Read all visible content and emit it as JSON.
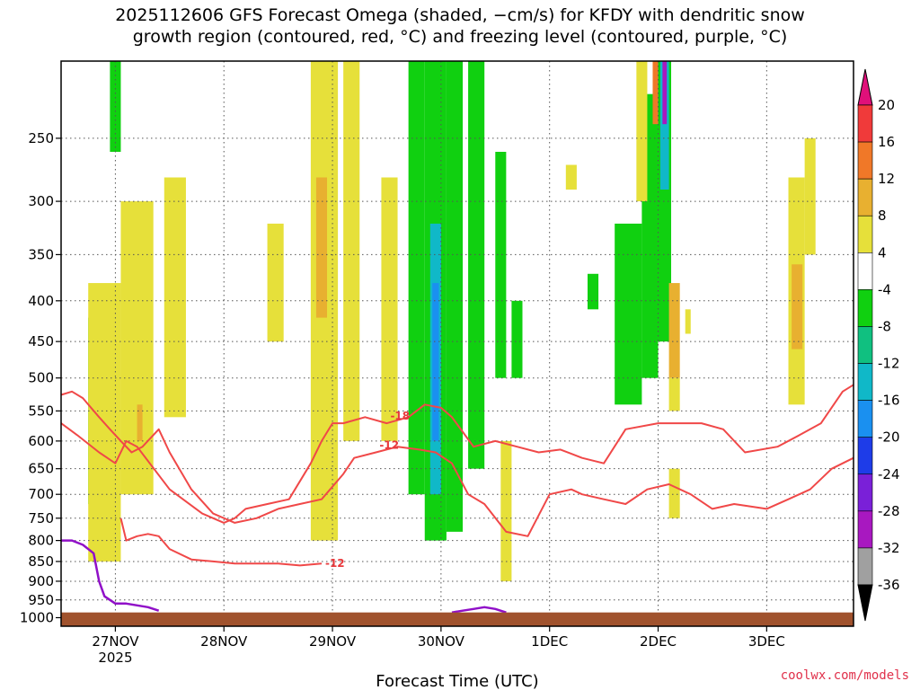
{
  "title": {
    "line1": "2025112606 GFS Forecast Omega (shaded, −cm/s) for KFDY with dendritic snow",
    "line2": "growth region (contoured, red, °C) and freezing level (contoured, purple, °C)"
  },
  "credit": "coolwx.com/models",
  "chart_data": {
    "type": "heatmap",
    "xlabel": "Forecast Time (UTC)",
    "x_ticks": [
      {
        "t": 0.5,
        "label": "27NOV",
        "sub": "2025"
      },
      {
        "t": 1.5,
        "label": "28NOV",
        "sub": ""
      },
      {
        "t": 2.5,
        "label": "29NOV",
        "sub": ""
      },
      {
        "t": 3.5,
        "label": "30NOV",
        "sub": ""
      },
      {
        "t": 4.5,
        "label": "1DEC",
        "sub": ""
      },
      {
        "t": 5.5,
        "label": "2DEC",
        "sub": ""
      },
      {
        "t": 6.5,
        "label": "3DEC",
        "sub": ""
      }
    ],
    "xlim": [
      0,
      7.3
    ],
    "y_ticks": [
      250,
      300,
      350,
      400,
      450,
      500,
      550,
      600,
      650,
      700,
      750,
      800,
      850,
      900,
      950,
      1000
    ],
    "ylim": [
      200,
      1025
    ],
    "y_scale": "log",
    "grid": true,
    "colorbar": {
      "labels": [
        "20",
        "16",
        "12",
        "8",
        "4",
        "-4",
        "-8",
        "-12",
        "-16",
        "-20",
        "-24",
        "-28",
        "-32",
        "-36"
      ],
      "bands": [
        {
          "color": "#f03a3a",
          "lo": 16,
          "hi": 20
        },
        {
          "color": "#f07828",
          "lo": 12,
          "hi": 16
        },
        {
          "color": "#e8b030",
          "lo": 8,
          "hi": 12
        },
        {
          "color": "#e6e03a",
          "lo": 4,
          "hi": 8
        },
        {
          "color": "#ffffff",
          "lo": -4,
          "hi": 4
        },
        {
          "color": "#10d010",
          "lo": -8,
          "hi": -4
        },
        {
          "color": "#10c080",
          "lo": -12,
          "hi": -8
        },
        {
          "color": "#10b8c8",
          "lo": -16,
          "hi": -12
        },
        {
          "color": "#1a90f0",
          "lo": -20,
          "hi": -16
        },
        {
          "color": "#1e3ce8",
          "lo": -24,
          "hi": -20
        },
        {
          "color": "#7a20d8",
          "lo": -28,
          "hi": -24
        },
        {
          "color": "#a818c0",
          "lo": -32,
          "hi": -28
        },
        {
          "color": "#a0a0a0",
          "lo": -36,
          "hi": -32
        }
      ],
      "top_arrow_color": "#e0107a",
      "bottom_arrow_color": "#000000"
    },
    "omega_cells": [
      {
        "t0": 0.45,
        "t1": 0.55,
        "p0": 200,
        "p1": 260,
        "color": "#10d010"
      },
      {
        "t0": 0.25,
        "t1": 0.35,
        "p0": 420,
        "p1": 720,
        "color": "#10d010"
      },
      {
        "t0": 0.25,
        "t1": 0.55,
        "p0": 380,
        "p1": 850,
        "color": "#e6e03a"
      },
      {
        "t0": 0.55,
        "t1": 0.85,
        "p0": 300,
        "p1": 700,
        "color": "#e6e03a"
      },
      {
        "t0": 0.95,
        "t1": 1.15,
        "p0": 280,
        "p1": 560,
        "color": "#e6e03a"
      },
      {
        "t0": 0.7,
        "t1": 0.75,
        "p0": 540,
        "p1": 600,
        "color": "#e8b030"
      },
      {
        "t0": 1.9,
        "t1": 2.05,
        "p0": 320,
        "p1": 450,
        "color": "#e6e03a"
      },
      {
        "t0": 2.3,
        "t1": 2.55,
        "p0": 200,
        "p1": 800,
        "color": "#e6e03a"
      },
      {
        "t0": 2.6,
        "t1": 2.75,
        "p0": 200,
        "p1": 600,
        "color": "#e6e03a"
      },
      {
        "t0": 2.35,
        "t1": 2.45,
        "p0": 280,
        "p1": 420,
        "color": "#e8b030"
      },
      {
        "t0": 2.95,
        "t1": 3.1,
        "p0": 280,
        "p1": 600,
        "color": "#e6e03a"
      },
      {
        "t0": 3.2,
        "t1": 3.35,
        "p0": 200,
        "p1": 700,
        "color": "#10d010"
      },
      {
        "t0": 3.35,
        "t1": 3.55,
        "p0": 200,
        "p1": 800,
        "color": "#10d010"
      },
      {
        "t0": 3.4,
        "t1": 3.5,
        "p0": 320,
        "p1": 700,
        "color": "#10b8c8"
      },
      {
        "t0": 3.42,
        "t1": 3.48,
        "p0": 380,
        "p1": 600,
        "color": "#1a90f0"
      },
      {
        "t0": 3.55,
        "t1": 3.7,
        "p0": 200,
        "p1": 780,
        "color": "#10d010"
      },
      {
        "t0": 3.75,
        "t1": 3.9,
        "p0": 200,
        "p1": 650,
        "color": "#10d010"
      },
      {
        "t0": 4.0,
        "t1": 4.1,
        "p0": 260,
        "p1": 500,
        "color": "#10d010"
      },
      {
        "t0": 4.05,
        "t1": 4.15,
        "p0": 600,
        "p1": 900,
        "color": "#e6e03a"
      },
      {
        "t0": 4.15,
        "t1": 4.25,
        "p0": 400,
        "p1": 500,
        "color": "#10d010"
      },
      {
        "t0": 4.65,
        "t1": 4.75,
        "p0": 270,
        "p1": 290,
        "color": "#e6e03a"
      },
      {
        "t0": 4.85,
        "t1": 4.95,
        "p0": 370,
        "p1": 410,
        "color": "#10d010"
      },
      {
        "t0": 5.1,
        "t1": 5.35,
        "p0": 320,
        "p1": 540,
        "color": "#10d010"
      },
      {
        "t0": 5.35,
        "t1": 5.5,
        "p0": 220,
        "p1": 500,
        "color": "#10d010"
      },
      {
        "t0": 5.3,
        "t1": 5.4,
        "p0": 200,
        "p1": 300,
        "color": "#e6e03a"
      },
      {
        "t0": 5.5,
        "t1": 5.62,
        "p0": 200,
        "p1": 450,
        "color": "#10d010"
      },
      {
        "t0": 5.52,
        "t1": 5.6,
        "p0": 200,
        "p1": 290,
        "color": "#10b8c8"
      },
      {
        "t0": 5.54,
        "t1": 5.58,
        "p0": 200,
        "p1": 240,
        "color": "#a818c0"
      },
      {
        "t0": 5.45,
        "t1": 5.5,
        "p0": 200,
        "p1": 240,
        "color": "#f07828"
      },
      {
        "t0": 5.6,
        "t1": 5.7,
        "p0": 380,
        "p1": 500,
        "color": "#e8b030"
      },
      {
        "t0": 5.6,
        "t1": 5.7,
        "p0": 500,
        "p1": 550,
        "color": "#e6e03a"
      },
      {
        "t0": 5.75,
        "t1": 5.8,
        "p0": 410,
        "p1": 440,
        "color": "#e6e03a"
      },
      {
        "t0": 5.6,
        "t1": 5.7,
        "p0": 650,
        "p1": 750,
        "color": "#e6e03a"
      },
      {
        "t0": 6.7,
        "t1": 6.85,
        "p0": 280,
        "p1": 540,
        "color": "#e6e03a"
      },
      {
        "t0": 6.85,
        "t1": 6.95,
        "p0": 250,
        "p1": 350,
        "color": "#e6e03a"
      },
      {
        "t0": 6.73,
        "t1": 6.83,
        "p0": 360,
        "p1": 460,
        "color": "#e8b030"
      }
    ],
    "dgz_contours": [
      {
        "label": "-18",
        "t": [
          0.0,
          0.15,
          0.35,
          0.5,
          0.6,
          0.7,
          1.0,
          1.3,
          1.5,
          1.6,
          1.7,
          1.9,
          2.1,
          2.3,
          2.4,
          2.5,
          2.6,
          2.8,
          3.0,
          3.2,
          3.35,
          3.5,
          3.6,
          3.8,
          4.0,
          4.2,
          4.4,
          4.6,
          4.8,
          5.0,
          5.2,
          5.5,
          5.7,
          5.9,
          6.1,
          6.3,
          6.6,
          6.8,
          7.0,
          7.2,
          7.3
        ],
        "p": [
          570,
          590,
          620,
          640,
          600,
          610,
          690,
          740,
          760,
          750,
          730,
          720,
          710,
          640,
          600,
          570,
          570,
          560,
          570,
          560,
          540,
          545,
          560,
          610,
          600,
          610,
          620,
          615,
          630,
          640,
          580,
          570,
          570,
          570,
          580,
          620,
          610,
          590,
          570,
          520,
          510
        ]
      },
      {
        "label": "-12",
        "t": [
          0.0,
          0.1,
          0.2,
          0.35,
          0.45,
          0.55,
          0.65,
          0.75,
          0.9,
          1.0,
          1.2,
          1.4,
          1.6,
          1.8,
          2.0,
          2.2,
          2.4,
          2.6,
          2.7,
          2.9,
          3.1,
          3.3,
          3.45,
          3.6,
          3.75,
          3.9,
          4.1,
          4.3,
          4.5,
          4.7,
          4.8,
          5.0,
          5.2,
          5.4,
          5.6,
          5.8,
          6.0,
          6.2,
          6.5,
          6.7,
          6.9,
          7.1,
          7.3
        ],
        "p": [
          525,
          520,
          530,
          560,
          580,
          600,
          620,
          610,
          580,
          620,
          690,
          740,
          760,
          750,
          730,
          720,
          710,
          660,
          630,
          620,
          610,
          615,
          620,
          640,
          700,
          720,
          780,
          790,
          700,
          690,
          700,
          710,
          720,
          690,
          680,
          700,
          730,
          720,
          730,
          710,
          690,
          650,
          630
        ]
      }
    ],
    "dgz_lower": [
      {
        "label": "-12",
        "t": [
          0.55,
          0.6,
          0.7,
          0.8,
          0.9,
          1.0,
          1.2,
          1.4,
          1.6,
          1.8,
          2.0,
          2.2,
          2.4
        ],
        "p": [
          750,
          800,
          790,
          785,
          790,
          820,
          845,
          850,
          855,
          855,
          855,
          860,
          855
        ]
      }
    ],
    "freezing_level": [
      {
        "t": [
          0.0,
          0.1,
          0.2,
          0.3,
          0.35,
          0.4,
          0.5,
          0.6,
          0.7,
          0.8,
          0.9
        ],
        "p": [
          800,
          800,
          810,
          830,
          900,
          940,
          960,
          960,
          965,
          970,
          980
        ]
      },
      {
        "t": [
          3.6,
          3.7,
          3.8,
          3.9,
          4.0,
          4.1
        ],
        "p": [
          985,
          980,
          975,
          970,
          975,
          985
        ]
      }
    ],
    "ground_pressure": 985
  }
}
